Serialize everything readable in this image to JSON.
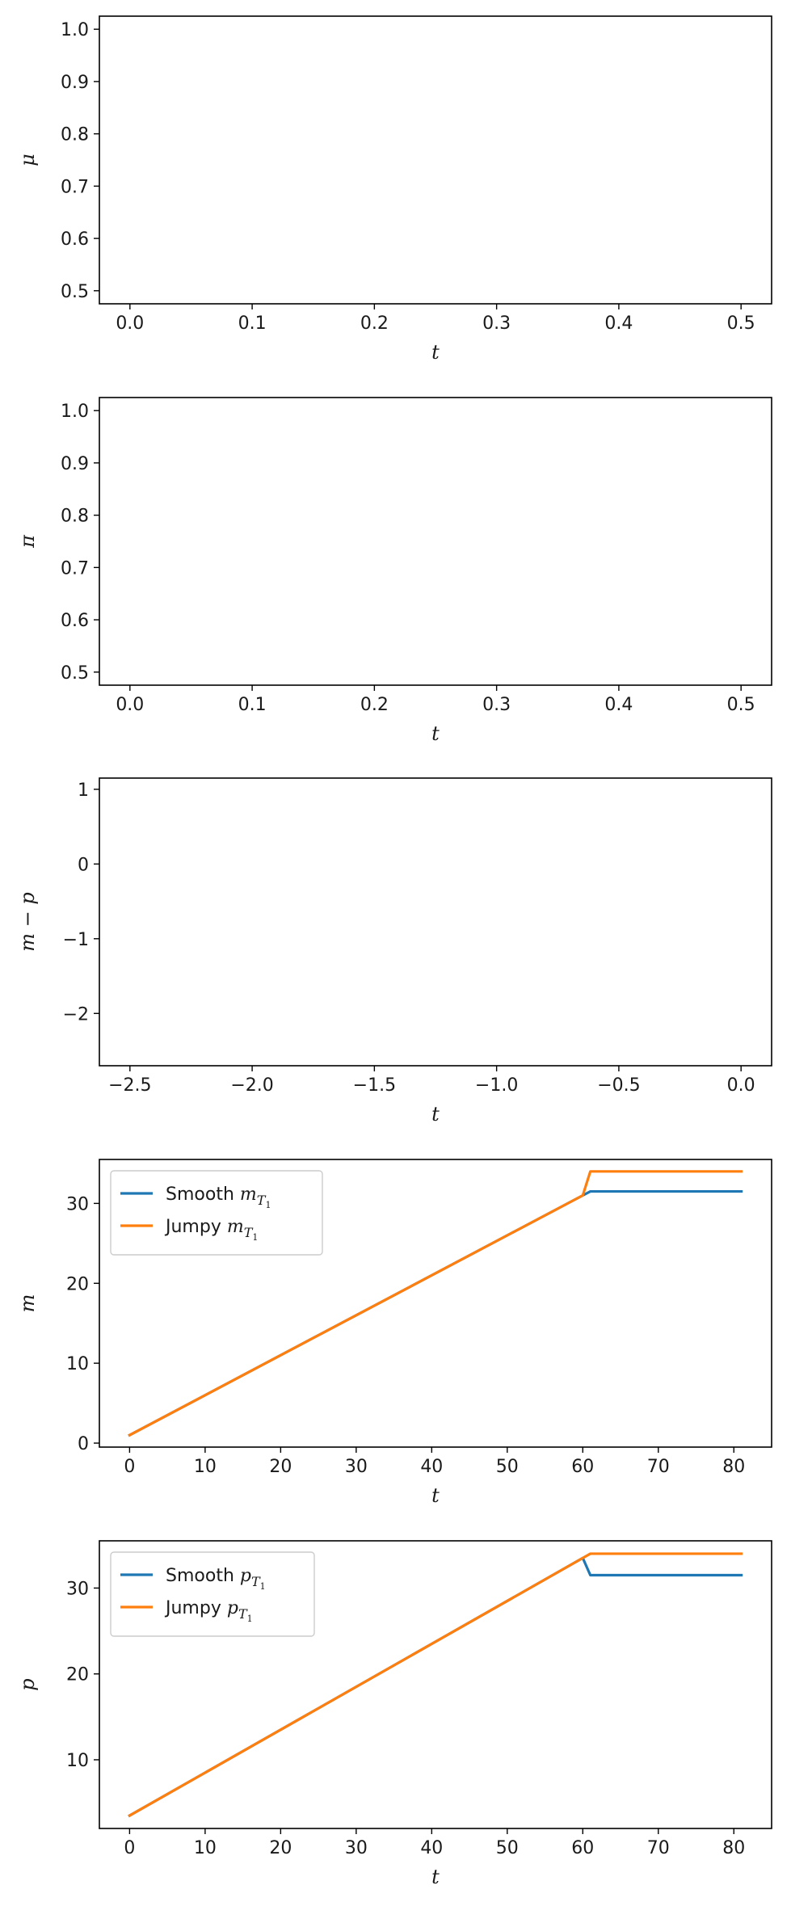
{
  "chart_data": [
    {
      "type": "line",
      "xlabel": "t",
      "ylabel": "μ",
      "xlim": [
        -0.025,
        0.525
      ],
      "ylim": [
        0.475,
        1.025
      ],
      "xticks": [
        "0.0",
        "0.1",
        "0.2",
        "0.3",
        "0.4",
        "0.5"
      ],
      "yticks": [
        "0.5",
        "0.6",
        "0.7",
        "0.8",
        "0.9",
        "1.0"
      ],
      "series": []
    },
    {
      "type": "line",
      "xlabel": "t",
      "ylabel": "π",
      "xlim": [
        -0.025,
        0.525
      ],
      "ylim": [
        0.475,
        1.025
      ],
      "xticks": [
        "0.0",
        "0.1",
        "0.2",
        "0.3",
        "0.4",
        "0.5"
      ],
      "yticks": [
        "0.5",
        "0.6",
        "0.7",
        "0.8",
        "0.9",
        "1.0"
      ],
      "series": []
    },
    {
      "type": "line",
      "xlabel": "t",
      "ylabel": "m − p",
      "xlim": [
        -2.625,
        0.125
      ],
      "ylim": [
        -2.7,
        1.15
      ],
      "xticks": [
        "−2.5",
        "−2.0",
        "−1.5",
        "−1.0",
        "−0.5",
        "0.0"
      ],
      "yticks": [
        "−2",
        "−1",
        "0",
        "1"
      ],
      "series": []
    },
    {
      "type": "line",
      "xlabel": "t",
      "ylabel": "m",
      "xlim": [
        -4,
        85
      ],
      "ylim": [
        -0.5,
        35.5
      ],
      "xticks": [
        "0",
        "10",
        "20",
        "30",
        "40",
        "50",
        "60",
        "70",
        "80"
      ],
      "yticks": [
        "0",
        "10",
        "20",
        "30"
      ],
      "legend_position": "upper-left",
      "series": [
        {
          "name": "Smooth",
          "name_math": "m",
          "name_sub": "T",
          "name_subsub": "1",
          "color": "#1f77b4",
          "x": [
            0,
            60,
            61,
            81
          ],
          "y": [
            1.0,
            31.0,
            31.5,
            31.5
          ]
        },
        {
          "name": "Jumpy",
          "name_math": "m",
          "name_sub": "T",
          "name_subsub": "1",
          "color": "#ff7f0e",
          "x": [
            0,
            60,
            61,
            81
          ],
          "y": [
            1.0,
            31.0,
            34.0,
            34.0
          ]
        }
      ]
    },
    {
      "type": "line",
      "xlabel": "t",
      "ylabel": "p",
      "xlim": [
        -4,
        85
      ],
      "ylim": [
        2,
        35.5
      ],
      "xticks": [
        "0",
        "10",
        "20",
        "30",
        "40",
        "50",
        "60",
        "70",
        "80"
      ],
      "yticks": [
        "10",
        "20",
        "30"
      ],
      "legend_position": "upper-left",
      "series": [
        {
          "name": "Smooth",
          "name_math": "p",
          "name_sub": "T",
          "name_subsub": "1",
          "color": "#1f77b4",
          "x": [
            0,
            60,
            61,
            81
          ],
          "y": [
            3.5,
            33.5,
            31.5,
            31.5
          ]
        },
        {
          "name": "Jumpy",
          "name_math": "p",
          "name_sub": "T",
          "name_subsub": "1",
          "color": "#ff7f0e",
          "x": [
            0,
            60,
            61,
            81
          ],
          "y": [
            3.5,
            33.5,
            34.0,
            34.0
          ]
        }
      ]
    }
  ]
}
